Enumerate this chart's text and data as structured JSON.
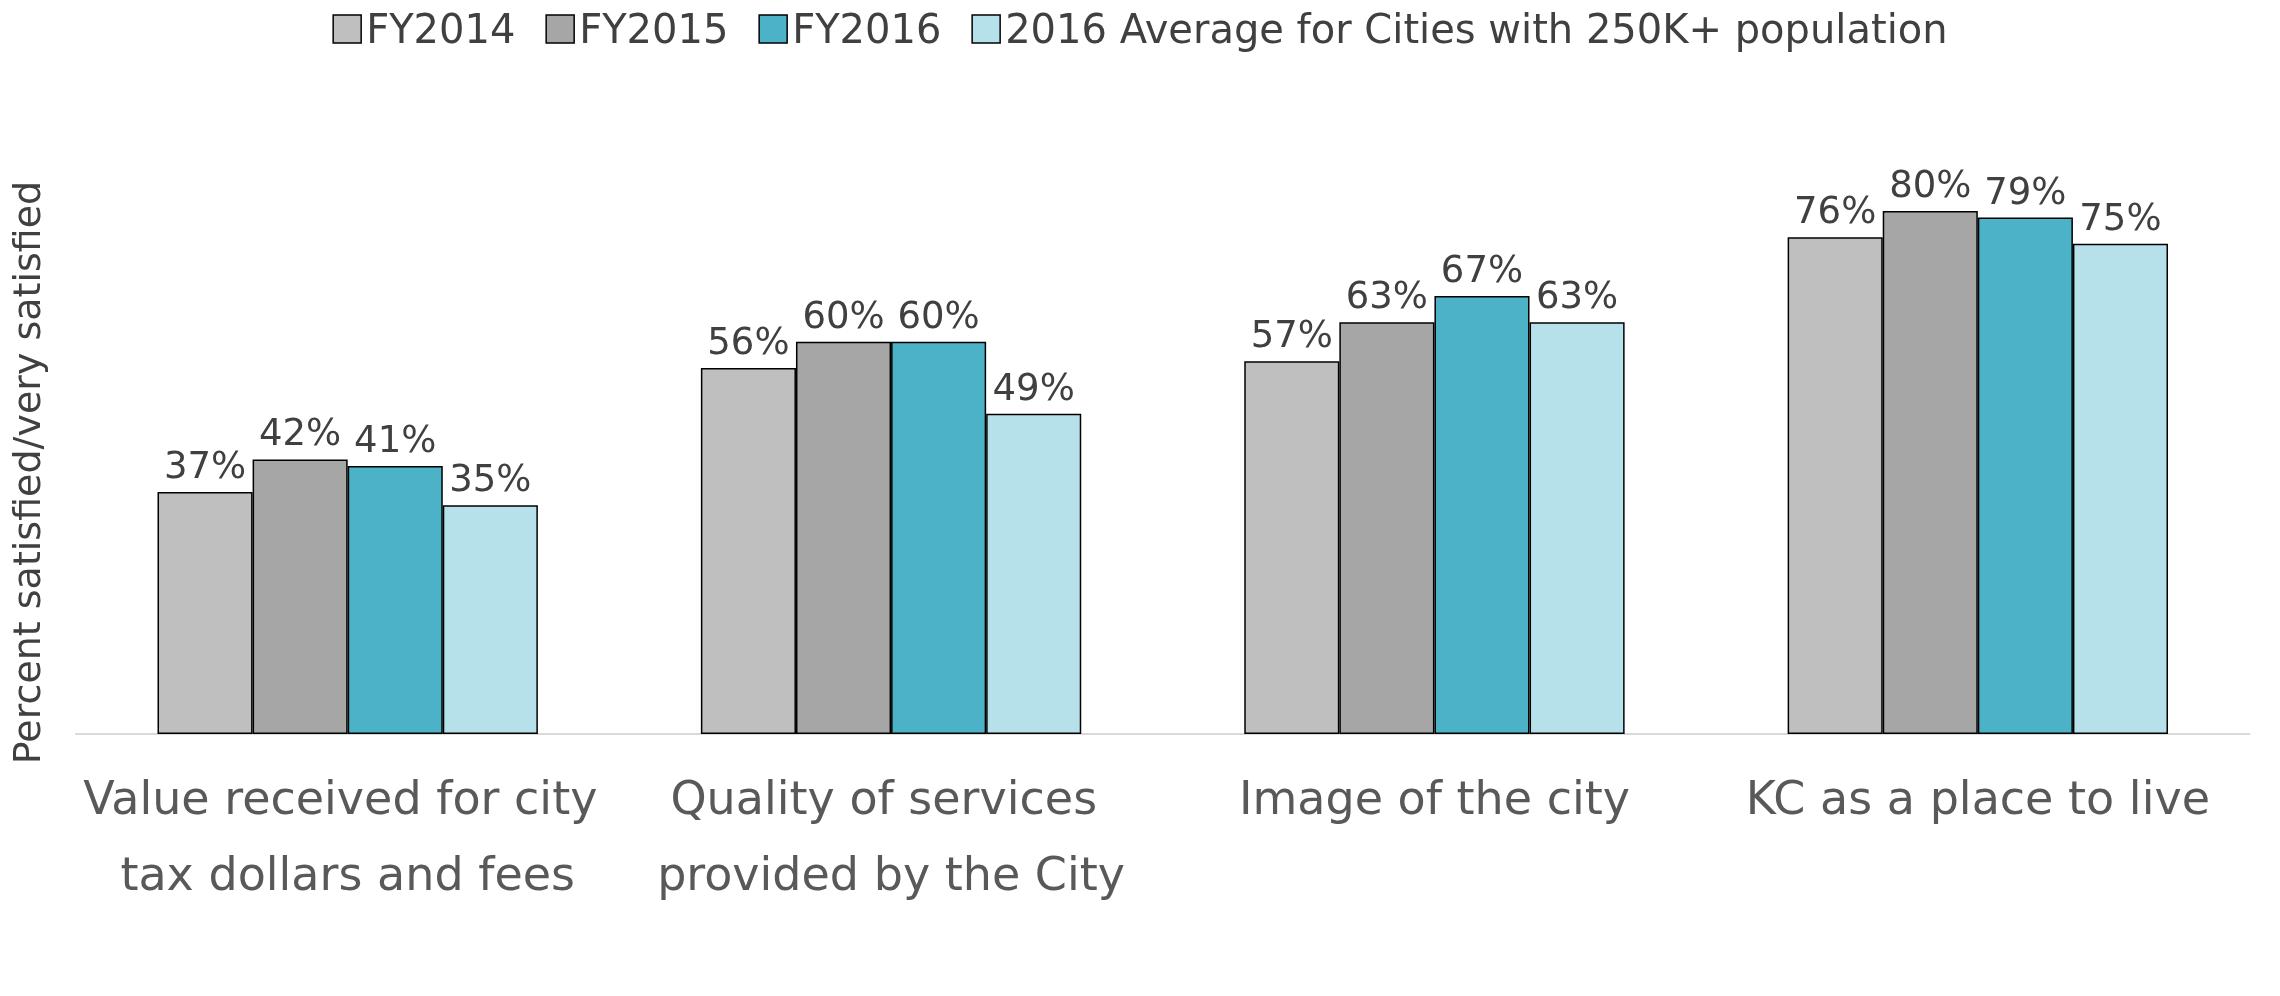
{
  "chart_data": {
    "type": "bar",
    "ylabel": "Percent satisfied/very satisfied",
    "categories": [
      "Value received for city tax dollars and fees",
      "Quality of services provided by the City",
      "Image of the city",
      "KC as a place to live"
    ],
    "series": [
      {
        "name": "FY2014",
        "color": "#bfbfbf",
        "values": [
          37,
          56,
          57,
          76
        ],
        "value_labels": [
          "37%",
          "56%",
          "57%",
          "76%"
        ]
      },
      {
        "name": "FY2015",
        "color": "#a6a6a6",
        "values": [
          42,
          60,
          63,
          80
        ],
        "value_labels": [
          "42%",
          "60%",
          "63%",
          "80%"
        ]
      },
      {
        "name": "FY2016",
        "color": "#4bb2c8",
        "values": [
          41,
          60,
          67,
          79
        ],
        "value_labels": [
          "41%",
          "60%",
          "67%",
          "79%"
        ]
      },
      {
        "name": "2016 Average for Cities with 250K+ population",
        "color": "#b7e1ea",
        "values": [
          35,
          49,
          63,
          75
        ],
        "value_labels": [
          "35%",
          "49%",
          "63%",
          "75%"
        ]
      }
    ],
    "tick_labels": "x",
    "grid": false,
    "legend": "top"
  }
}
